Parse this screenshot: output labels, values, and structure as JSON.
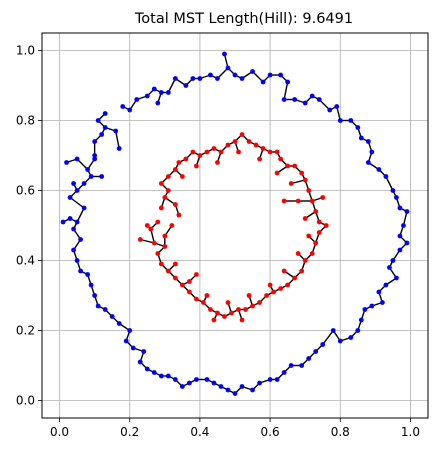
{
  "chart_data": {
    "type": "scatter",
    "title": "Total MST Length(Hill): 9.6491",
    "xlabel": "",
    "ylabel": "",
    "xlim": [
      -0.05,
      1.05
    ],
    "ylim": [
      -0.05,
      1.05
    ],
    "grid": true,
    "x_ticks": [
      0.0,
      0.2,
      0.4,
      0.6,
      0.8,
      1.0
    ],
    "y_ticks": [
      0.0,
      0.2,
      0.4,
      0.6,
      0.8,
      1.0
    ],
    "x_tick_labels": [
      "0.0",
      "0.2",
      "0.4",
      "0.6",
      "0.8",
      "1.0"
    ],
    "y_tick_labels": [
      "0.0",
      "0.2",
      "0.4",
      "0.6",
      "0.8",
      "1.0"
    ],
    "edge_color": "#000000",
    "series": [
      {
        "color": "#0000ff",
        "points": [
          [
            0.01,
            0.51
          ],
          [
            0.03,
            0.52
          ],
          [
            0.05,
            0.51
          ],
          [
            0.03,
            0.58
          ],
          [
            0.05,
            0.6
          ],
          [
            0.04,
            0.62
          ],
          [
            0.07,
            0.62
          ],
          [
            0.02,
            0.68
          ],
          [
            0.05,
            0.69
          ],
          [
            0.08,
            0.66
          ],
          [
            0.1,
            0.69
          ],
          [
            0.09,
            0.64
          ],
          [
            0.12,
            0.64
          ],
          [
            0.1,
            0.7
          ],
          [
            0.1,
            0.74
          ],
          [
            0.12,
            0.76
          ],
          [
            0.13,
            0.78
          ],
          [
            0.11,
            0.8
          ],
          [
            0.13,
            0.82
          ],
          [
            0.16,
            0.77
          ],
          [
            0.17,
            0.72
          ],
          [
            0.18,
            0.84
          ],
          [
            0.2,
            0.83
          ],
          [
            0.22,
            0.86
          ],
          [
            0.25,
            0.87
          ],
          [
            0.27,
            0.89
          ],
          [
            0.28,
            0.85
          ],
          [
            0.29,
            0.88
          ],
          [
            0.31,
            0.88
          ],
          [
            0.33,
            0.92
          ],
          [
            0.36,
            0.9
          ],
          [
            0.38,
            0.92
          ],
          [
            0.4,
            0.92
          ],
          [
            0.43,
            0.93
          ],
          [
            0.45,
            0.92
          ],
          [
            0.47,
            0.99
          ],
          [
            0.48,
            0.95
          ],
          [
            0.5,
            0.93
          ],
          [
            0.52,
            0.92
          ],
          [
            0.55,
            0.94
          ],
          [
            0.58,
            0.91
          ],
          [
            0.6,
            0.93
          ],
          [
            0.63,
            0.93
          ],
          [
            0.65,
            0.91
          ],
          [
            0.64,
            0.86
          ],
          [
            0.67,
            0.86
          ],
          [
            0.7,
            0.85
          ],
          [
            0.72,
            0.87
          ],
          [
            0.74,
            0.86
          ],
          [
            0.77,
            0.83
          ],
          [
            0.79,
            0.84
          ],
          [
            0.8,
            0.8
          ],
          [
            0.83,
            0.8
          ],
          [
            0.85,
            0.78
          ],
          [
            0.86,
            0.75
          ],
          [
            0.88,
            0.74
          ],
          [
            0.89,
            0.71
          ],
          [
            0.88,
            0.68
          ],
          [
            0.91,
            0.66
          ],
          [
            0.93,
            0.64
          ],
          [
            0.95,
            0.6
          ],
          [
            0.96,
            0.58
          ],
          [
            0.97,
            0.55
          ],
          [
            0.99,
            0.54
          ],
          [
            0.98,
            0.5
          ],
          [
            0.97,
            0.47
          ],
          [
            0.99,
            0.45
          ],
          [
            0.97,
            0.43
          ],
          [
            0.95,
            0.4
          ],
          [
            0.94,
            0.38
          ],
          [
            0.96,
            0.35
          ],
          [
            0.93,
            0.33
          ],
          [
            0.91,
            0.31
          ],
          [
            0.92,
            0.28
          ],
          [
            0.89,
            0.27
          ],
          [
            0.87,
            0.26
          ],
          [
            0.86,
            0.23
          ],
          [
            0.85,
            0.2
          ],
          [
            0.83,
            0.18
          ],
          [
            0.8,
            0.17
          ],
          [
            0.78,
            0.2
          ],
          [
            0.75,
            0.16
          ],
          [
            0.73,
            0.14
          ],
          [
            0.71,
            0.12
          ],
          [
            0.69,
            0.1
          ],
          [
            0.66,
            0.1
          ],
          [
            0.64,
            0.08
          ],
          [
            0.62,
            0.06
          ],
          [
            0.6,
            0.06
          ],
          [
            0.57,
            0.05
          ],
          [
            0.55,
            0.03
          ],
          [
            0.52,
            0.04
          ],
          [
            0.5,
            0.02
          ],
          [
            0.48,
            0.03
          ],
          [
            0.46,
            0.04
          ],
          [
            0.44,
            0.05
          ],
          [
            0.42,
            0.06
          ],
          [
            0.39,
            0.06
          ],
          [
            0.37,
            0.05
          ],
          [
            0.35,
            0.04
          ],
          [
            0.33,
            0.06
          ],
          [
            0.31,
            0.07
          ],
          [
            0.29,
            0.07
          ],
          [
            0.27,
            0.08
          ],
          [
            0.25,
            0.09
          ],
          [
            0.23,
            0.11
          ],
          [
            0.24,
            0.14
          ],
          [
            0.21,
            0.15
          ],
          [
            0.19,
            0.17
          ],
          [
            0.2,
            0.2
          ],
          [
            0.17,
            0.22
          ],
          [
            0.15,
            0.24
          ],
          [
            0.13,
            0.26
          ],
          [
            0.11,
            0.27
          ],
          [
            0.1,
            0.3
          ],
          [
            0.09,
            0.33
          ],
          [
            0.08,
            0.36
          ],
          [
            0.06,
            0.37
          ],
          [
            0.05,
            0.4
          ],
          [
            0.04,
            0.43
          ],
          [
            0.06,
            0.46
          ],
          [
            0.04,
            0.49
          ],
          [
            0.07,
            0.55
          ]
        ]
      },
      {
        "color": "#ff0000",
        "points": [
          [
            0.26,
            0.49
          ],
          [
            0.28,
            0.51
          ],
          [
            0.29,
            0.55
          ],
          [
            0.3,
            0.58
          ],
          [
            0.29,
            0.62
          ],
          [
            0.31,
            0.64
          ],
          [
            0.33,
            0.66
          ],
          [
            0.34,
            0.68
          ],
          [
            0.36,
            0.69
          ],
          [
            0.38,
            0.71
          ],
          [
            0.4,
            0.7
          ],
          [
            0.42,
            0.71
          ],
          [
            0.44,
            0.72
          ],
          [
            0.46,
            0.71
          ],
          [
            0.48,
            0.73
          ],
          [
            0.5,
            0.74
          ],
          [
            0.52,
            0.76
          ],
          [
            0.54,
            0.74
          ],
          [
            0.56,
            0.73
          ],
          [
            0.58,
            0.72
          ],
          [
            0.6,
            0.71
          ],
          [
            0.62,
            0.71
          ],
          [
            0.63,
            0.69
          ],
          [
            0.65,
            0.67
          ],
          [
            0.67,
            0.67
          ],
          [
            0.69,
            0.65
          ],
          [
            0.7,
            0.63
          ],
          [
            0.71,
            0.6
          ],
          [
            0.72,
            0.57
          ],
          [
            0.73,
            0.54
          ],
          [
            0.74,
            0.51
          ],
          [
            0.74,
            0.48
          ],
          [
            0.73,
            0.45
          ],
          [
            0.72,
            0.42
          ],
          [
            0.7,
            0.4
          ],
          [
            0.69,
            0.37
          ],
          [
            0.67,
            0.35
          ],
          [
            0.65,
            0.33
          ],
          [
            0.63,
            0.32
          ],
          [
            0.61,
            0.31
          ],
          [
            0.59,
            0.3
          ],
          [
            0.57,
            0.28
          ],
          [
            0.55,
            0.27
          ],
          [
            0.53,
            0.26
          ],
          [
            0.51,
            0.26
          ],
          [
            0.49,
            0.25
          ],
          [
            0.47,
            0.24
          ],
          [
            0.45,
            0.25
          ],
          [
            0.43,
            0.26
          ],
          [
            0.41,
            0.28
          ],
          [
            0.39,
            0.29
          ],
          [
            0.37,
            0.31
          ],
          [
            0.35,
            0.33
          ],
          [
            0.33,
            0.35
          ],
          [
            0.31,
            0.37
          ],
          [
            0.29,
            0.39
          ],
          [
            0.28,
            0.42
          ],
          [
            0.27,
            0.45
          ],
          [
            0.3,
            0.47
          ],
          [
            0.32,
            0.5
          ],
          [
            0.34,
            0.53
          ],
          [
            0.31,
            0.6
          ],
          [
            0.35,
            0.64
          ],
          [
            0.39,
            0.67
          ],
          [
            0.45,
            0.68
          ],
          [
            0.51,
            0.71
          ],
          [
            0.57,
            0.69
          ],
          [
            0.62,
            0.65
          ],
          [
            0.66,
            0.62
          ],
          [
            0.68,
            0.57
          ],
          [
            0.7,
            0.52
          ],
          [
            0.71,
            0.47
          ],
          [
            0.68,
            0.42
          ],
          [
            0.64,
            0.37
          ],
          [
            0.6,
            0.33
          ],
          [
            0.54,
            0.3
          ],
          [
            0.48,
            0.28
          ],
          [
            0.42,
            0.3
          ],
          [
            0.37,
            0.34
          ],
          [
            0.33,
            0.39
          ],
          [
            0.3,
            0.44
          ],
          [
            0.25,
            0.5
          ],
          [
            0.23,
            0.46
          ],
          [
            0.76,
            0.5
          ],
          [
            0.75,
            0.58
          ],
          [
            0.52,
            0.23
          ],
          [
            0.44,
            0.23
          ],
          [
            0.64,
            0.57
          ],
          [
            0.33,
            0.56
          ],
          [
            0.39,
            0.36
          ]
        ]
      }
    ]
  }
}
